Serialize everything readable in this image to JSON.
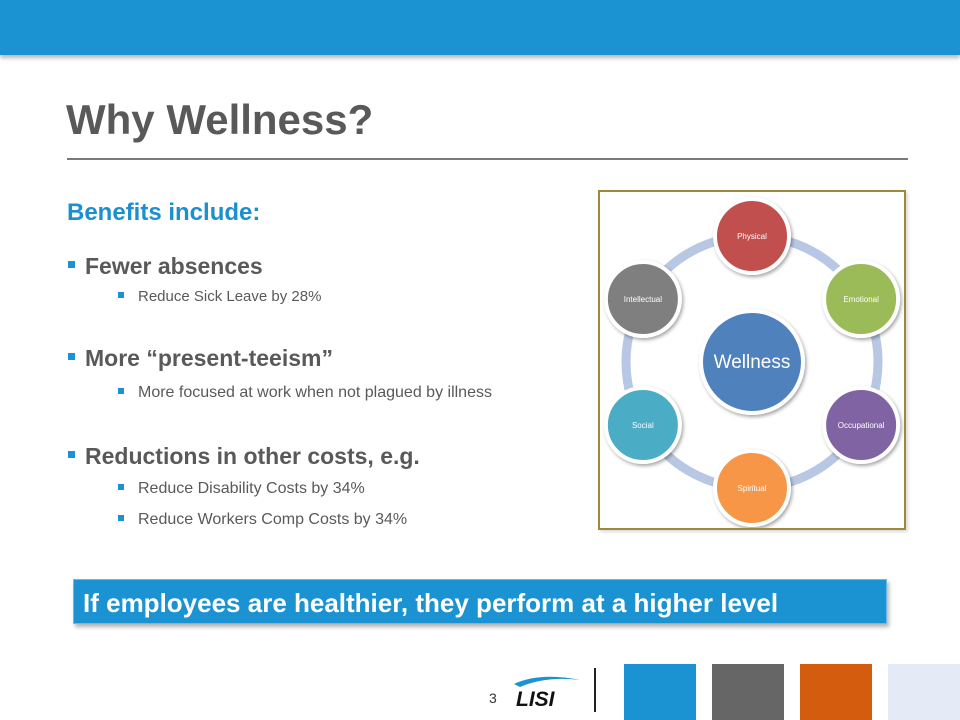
{
  "slide": {
    "title": "Why Wellness?",
    "subheading": "Benefits include:",
    "bullets": [
      {
        "text": "Fewer absences",
        "sub": [
          "Reduce Sick Leave by 28%"
        ]
      },
      {
        "text": "More “present-teeism”",
        "sub": [
          "More focused at work when not plagued by illness"
        ]
      },
      {
        "text": "Reductions in other costs, e.g.",
        "sub": [
          "Reduce Disability Costs by 34%",
          "Reduce Workers Comp Costs by 34%"
        ]
      }
    ],
    "callout": "If employees are healthier, they perform at a higher level",
    "page_number": "3"
  },
  "diagram": {
    "center": "Wellness",
    "nodes": [
      {
        "label": "Physical",
        "color": "#c0504d"
      },
      {
        "label": "Emotional",
        "color": "#9bbb59"
      },
      {
        "label": "Occupational",
        "color": "#8064a2"
      },
      {
        "label": "Spiritual",
        "color": "#f79646"
      },
      {
        "label": "Social",
        "color": "#4bacc6"
      },
      {
        "label": "Intellectual",
        "color": "#7f7f7f"
      }
    ],
    "center_color": "#4f81bd",
    "ring_color": "#b8c7e3"
  },
  "footer": {
    "logo_text": "LISI",
    "squares": [
      "#1b93d2",
      "#666666",
      "#d35c0f",
      "#e4eaf6"
    ]
  }
}
